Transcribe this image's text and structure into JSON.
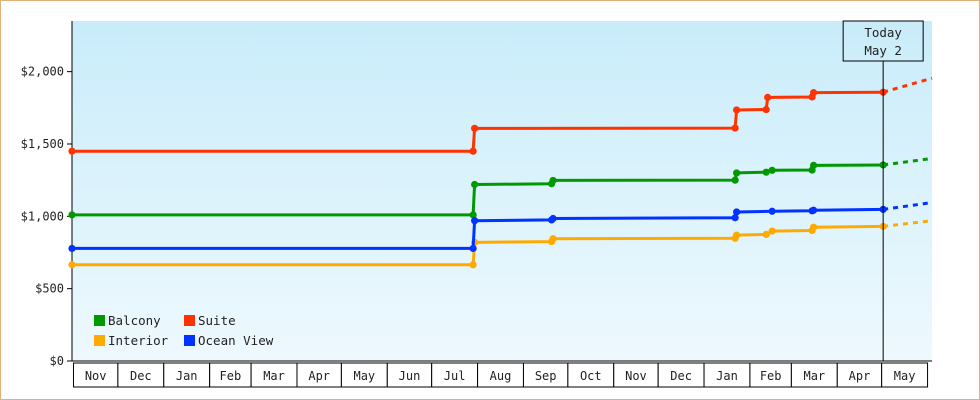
{
  "chart_data": {
    "type": "line",
    "title": "",
    "xlabel": "",
    "ylabel": "",
    "ylim": [
      0,
      2350
    ],
    "yticks": [
      0,
      500,
      1000,
      1500,
      2000
    ],
    "ytick_labels": [
      "$0",
      "$500",
      "$1,000",
      "$1,500",
      "$2,000"
    ],
    "x_start": "2012-10-31",
    "x_end": "2014-06-04",
    "today": "2014-05-02",
    "today_label": [
      "Today",
      "May 2"
    ],
    "month_labels": [
      "Nov",
      "Dec",
      "Jan",
      "Feb",
      "Mar",
      "Apr",
      "May",
      "Jun",
      "Jul",
      "Aug",
      "Sep",
      "Oct",
      "Nov",
      "Dec",
      "Jan",
      "Feb",
      "Mar",
      "Apr",
      "May"
    ],
    "month_ticks": [
      "2012-11-01",
      "2012-12-01",
      "2013-01-01",
      "2013-02-01",
      "2013-03-01",
      "2013-04-01",
      "2013-05-01",
      "2013-06-01",
      "2013-07-01",
      "2013-08-01",
      "2013-09-01",
      "2013-10-01",
      "2013-11-01",
      "2013-12-01",
      "2014-01-01",
      "2014-02-01",
      "2014-03-01",
      "2014-04-01",
      "2014-05-01",
      "2014-06-01"
    ],
    "legend": {
      "position": "bottom-left",
      "columns": 2
    },
    "series": [
      {
        "name": "Balcony",
        "color": "#009900",
        "points": [
          [
            "2012-10-31",
            1010
          ],
          [
            "2013-07-29",
            1010
          ],
          [
            "2013-07-30",
            1220
          ],
          [
            "2013-09-20",
            1225
          ],
          [
            "2013-09-21",
            1248
          ],
          [
            "2014-01-22",
            1250
          ],
          [
            "2014-01-23",
            1300
          ],
          [
            "2014-02-12",
            1305
          ],
          [
            "2014-02-16",
            1318
          ],
          [
            "2014-03-15",
            1320
          ],
          [
            "2014-03-16",
            1352
          ],
          [
            "2014-05-02",
            1355
          ]
        ],
        "projection": [
          [
            "2014-05-02",
            1355
          ],
          [
            "2014-06-04",
            1400
          ]
        ]
      },
      {
        "name": "Suite",
        "color": "#ff3300",
        "points": [
          [
            "2012-10-31",
            1450
          ],
          [
            "2013-07-29",
            1450
          ],
          [
            "2013-07-30",
            1608
          ],
          [
            "2014-01-22",
            1610
          ],
          [
            "2014-01-23",
            1735
          ],
          [
            "2014-02-12",
            1738
          ],
          [
            "2014-02-13",
            1822
          ],
          [
            "2014-03-15",
            1825
          ],
          [
            "2014-03-16",
            1855
          ],
          [
            "2014-05-02",
            1858
          ]
        ],
        "projection": [
          [
            "2014-05-02",
            1858
          ],
          [
            "2014-06-04",
            1955
          ]
        ]
      },
      {
        "name": "Interior",
        "color": "#ffaa00",
        "points": [
          [
            "2012-10-31",
            665
          ],
          [
            "2013-07-29",
            665
          ],
          [
            "2013-07-30",
            820
          ],
          [
            "2013-09-20",
            825
          ],
          [
            "2013-09-21",
            845
          ],
          [
            "2014-01-22",
            848
          ],
          [
            "2014-01-23",
            870
          ],
          [
            "2014-02-12",
            875
          ],
          [
            "2014-02-16",
            898
          ],
          [
            "2014-03-15",
            902
          ],
          [
            "2014-03-16",
            925
          ],
          [
            "2014-05-02",
            930
          ]
        ],
        "projection": [
          [
            "2014-05-02",
            930
          ],
          [
            "2014-06-04",
            970
          ]
        ]
      },
      {
        "name": "Ocean View",
        "color": "#0033ff",
        "points": [
          [
            "2012-10-31",
            778
          ],
          [
            "2013-07-29",
            778
          ],
          [
            "2013-07-30",
            970
          ],
          [
            "2013-09-20",
            975
          ],
          [
            "2013-09-21",
            985
          ],
          [
            "2014-01-22",
            990
          ],
          [
            "2014-01-23",
            1030
          ],
          [
            "2014-02-16",
            1035
          ],
          [
            "2014-03-15",
            1038
          ],
          [
            "2014-03-16",
            1042
          ],
          [
            "2014-05-02",
            1048
          ]
        ],
        "projection": [
          [
            "2014-05-02",
            1048
          ],
          [
            "2014-06-04",
            1095
          ]
        ]
      }
    ],
    "legend_order": [
      "Balcony",
      "Suite",
      "Interior",
      "Ocean View"
    ]
  }
}
